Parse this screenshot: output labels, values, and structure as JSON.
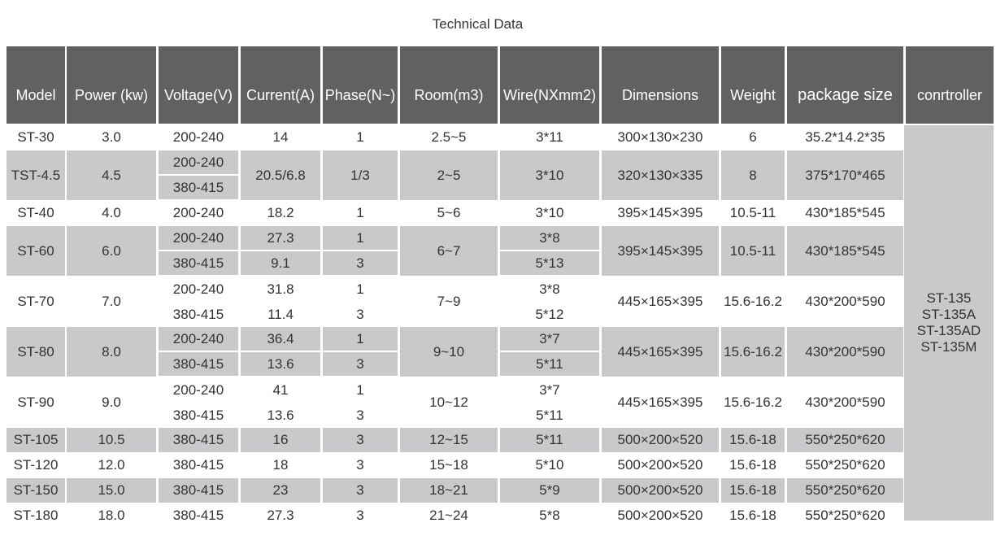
{
  "title": "Technical Data",
  "headers": [
    "Model",
    "Power  (kw)",
    "Voltage(V)",
    "Current(A)",
    "Phase(N~)",
    "Room(m3)",
    "Wire(NXmm2)",
    "Dimensions",
    "Weight",
    "package size",
    "conrtroller"
  ],
  "rows": [
    [
      "ST-30",
      "3.0",
      [
        "200-240"
      ],
      [
        "14"
      ],
      [
        "1"
      ],
      [
        "2.5~5"
      ],
      [
        "3*11"
      ],
      "300×130×230",
      "6",
      "35.2*14.2*35"
    ],
    [
      "TST-4.5",
      "4.5",
      [
        "200-240",
        "380-415"
      ],
      [
        "20.5/6.8"
      ],
      [
        "1/3"
      ],
      [
        "2~5"
      ],
      [
        "3*10"
      ],
      "320×130×335",
      "8",
      "375*170*465"
    ],
    [
      "ST-40",
      "4.0",
      [
        "200-240"
      ],
      [
        "18.2"
      ],
      [
        "1"
      ],
      [
        "5~6"
      ],
      [
        "3*10"
      ],
      "395×145×395",
      "10.5-11",
      "430*185*545"
    ],
    [
      "ST-60",
      "6.0",
      [
        "200-240",
        "380-415"
      ],
      [
        "27.3",
        "9.1"
      ],
      [
        "1",
        "3"
      ],
      [
        "6~7"
      ],
      [
        "3*8",
        "5*13"
      ],
      "395×145×395",
      "10.5-11",
      "430*185*545"
    ],
    [
      "ST-70",
      "7.0",
      [
        "200-240",
        "380-415"
      ],
      [
        "31.8",
        "11.4"
      ],
      [
        "1",
        "3"
      ],
      [
        "7~9"
      ],
      [
        "3*8",
        "5*12"
      ],
      "445×165×395",
      "15.6-16.2",
      "430*200*590"
    ],
    [
      "ST-80",
      "8.0",
      [
        "200-240",
        "380-415"
      ],
      [
        "36.4",
        "13.6"
      ],
      [
        "1",
        "3"
      ],
      [
        "9~10"
      ],
      [
        "3*7",
        "5*11"
      ],
      "445×165×395",
      "15.6-16.2",
      "430*200*590"
    ],
    [
      "ST-90",
      "9.0",
      [
        "200-240",
        "380-415"
      ],
      [
        "41",
        "13.6"
      ],
      [
        "1",
        "3"
      ],
      [
        "10~12"
      ],
      [
        "3*7",
        "5*11"
      ],
      "445×165×395",
      "15.6-16.2",
      "430*200*590"
    ],
    [
      "ST-105",
      "10.5",
      [
        "380-415"
      ],
      [
        "16"
      ],
      [
        "3"
      ],
      [
        "12~15"
      ],
      [
        "5*11"
      ],
      "500×200×520",
      "15.6-18",
      "550*250*620"
    ],
    [
      "ST-120",
      "12.0",
      [
        "380-415"
      ],
      [
        "18"
      ],
      [
        "3"
      ],
      [
        "15~18"
      ],
      [
        "5*10"
      ],
      "500×200×520",
      "15.6-18",
      "550*250*620"
    ],
    [
      "ST-150",
      "15.0",
      [
        "380-415"
      ],
      [
        "23"
      ],
      [
        "3"
      ],
      [
        "18~21"
      ],
      [
        "5*9"
      ],
      "500×200×520",
      "15.6-18",
      "550*250*620"
    ],
    [
      "ST-180",
      "18.0",
      [
        "380-415"
      ],
      [
        "27.3"
      ],
      [
        "3"
      ],
      [
        "21~24"
      ],
      [
        "5*8"
      ],
      "500×200×520",
      "15.6-18",
      "550*250*620"
    ]
  ],
  "controller": [
    "ST-135",
    "ST-135A",
    "ST-135AD",
    "ST-135M"
  ]
}
